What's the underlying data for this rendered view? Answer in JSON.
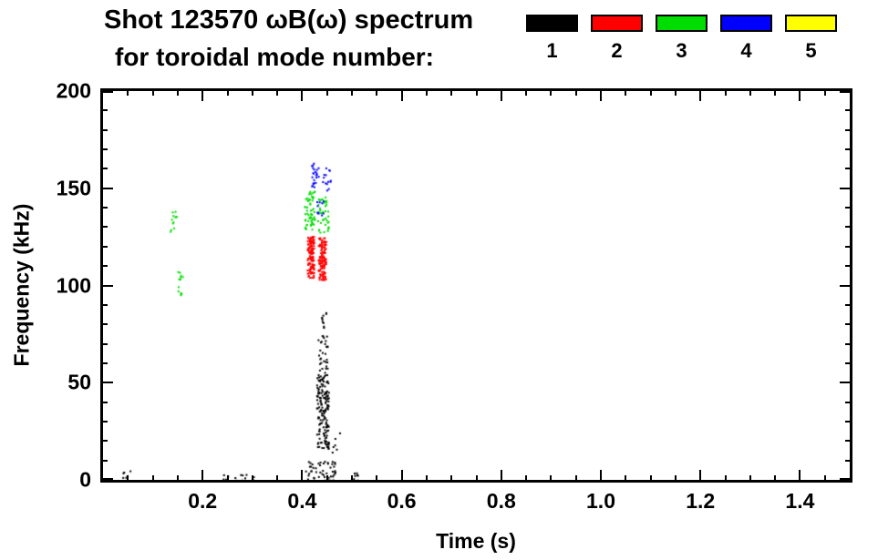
{
  "header": {
    "title_line1": "Shot 123570 ωB(ω) spectrum",
    "title_line2": "for toroidal mode number:"
  },
  "legend": {
    "entries": [
      {
        "label": "1",
        "color": "#000000"
      },
      {
        "label": "2",
        "color": "#ff0000"
      },
      {
        "label": "3",
        "color": "#00dd00"
      },
      {
        "label": "4",
        "color": "#0000ff"
      },
      {
        "label": "5",
        "color": "#ffff00"
      }
    ]
  },
  "chart_data": {
    "type": "scatter",
    "title": "Shot 123570 ωB(ω) spectrum for toroidal mode number",
    "xlabel": "Time (s)",
    "ylabel": "Frequency (kHz)",
    "xlim": [
      0,
      1.5
    ],
    "ylim": [
      0,
      200
    ],
    "grid": false,
    "legend_position": "top-right",
    "xticks": {
      "values": [
        0.2,
        0.4,
        0.6,
        0.8,
        1.0,
        1.2,
        1.4
      ],
      "labels": [
        "0.2",
        "0.4",
        "0.6",
        "0.8",
        "1.0",
        "1.2",
        "1.4"
      ]
    },
    "yticks": {
      "values": [
        0,
        50,
        100,
        150,
        200
      ],
      "labels": [
        "0",
        "50",
        "100",
        "150",
        "200"
      ]
    },
    "minor_x_step": 0.05,
    "minor_y_step": 10,
    "series": [
      {
        "name": "toroidal mode n=1",
        "label": "1",
        "color": "#000000",
        "clusters": [
          {
            "t": [
              0.038,
              0.055
            ],
            "f": [
              1,
              5
            ],
            "n": 6
          },
          {
            "t": [
              0.24,
              0.305
            ],
            "f": [
              0,
              3
            ],
            "n": 14
          },
          {
            "t": [
              0.405,
              0.465
            ],
            "f": [
              0,
              10
            ],
            "n": 50
          },
          {
            "t": [
              0.428,
              0.452
            ],
            "f": [
              16,
              55
            ],
            "n": 160
          },
          {
            "t": [
              0.43,
              0.45
            ],
            "f": [
              55,
              75
            ],
            "n": 30
          },
          {
            "t": [
              0.435,
              0.448
            ],
            "f": [
              78,
              87
            ],
            "n": 10
          },
          {
            "t": [
              0.458,
              0.475
            ],
            "f": [
              12,
              30
            ],
            "n": 6
          },
          {
            "t": [
              0.495,
              0.515
            ],
            "f": [
              0,
              5
            ],
            "n": 8
          }
        ]
      },
      {
        "name": "toroidal mode n=2",
        "label": "2",
        "color": "#ff0000",
        "clusters": [
          {
            "t": [
              0.409,
              0.423
            ],
            "f": [
              104,
              126
            ],
            "n": 130
          },
          {
            "t": [
              0.431,
              0.447
            ],
            "f": [
              103,
              125
            ],
            "n": 130
          }
        ]
      },
      {
        "name": "toroidal mode n=3",
        "label": "3",
        "color": "#00dd00",
        "clusters": [
          {
            "t": [
              0.134,
              0.146
            ],
            "f": [
              127,
              139
            ],
            "n": 12
          },
          {
            "t": [
              0.149,
              0.159
            ],
            "f": [
              92,
              108
            ],
            "n": 12
          },
          {
            "t": [
              0.404,
              0.424
            ],
            "f": [
              129,
              149
            ],
            "n": 60
          },
          {
            "t": [
              0.43,
              0.452
            ],
            "f": [
              127,
              146
            ],
            "n": 40
          }
        ]
      },
      {
        "name": "toroidal mode n=4",
        "label": "4",
        "color": "#0000ff",
        "clusters": [
          {
            "t": [
              0.417,
              0.432
            ],
            "f": [
              151,
              164
            ],
            "n": 24
          },
          {
            "t": [
              0.44,
              0.457
            ],
            "f": [
              149,
              161
            ],
            "n": 14
          },
          {
            "t": [
              0.426,
              0.442
            ],
            "f": [
              135,
              144
            ],
            "n": 10
          }
        ]
      },
      {
        "name": "toroidal mode n=5",
        "label": "5",
        "color": "#ffff00",
        "clusters": []
      }
    ]
  }
}
